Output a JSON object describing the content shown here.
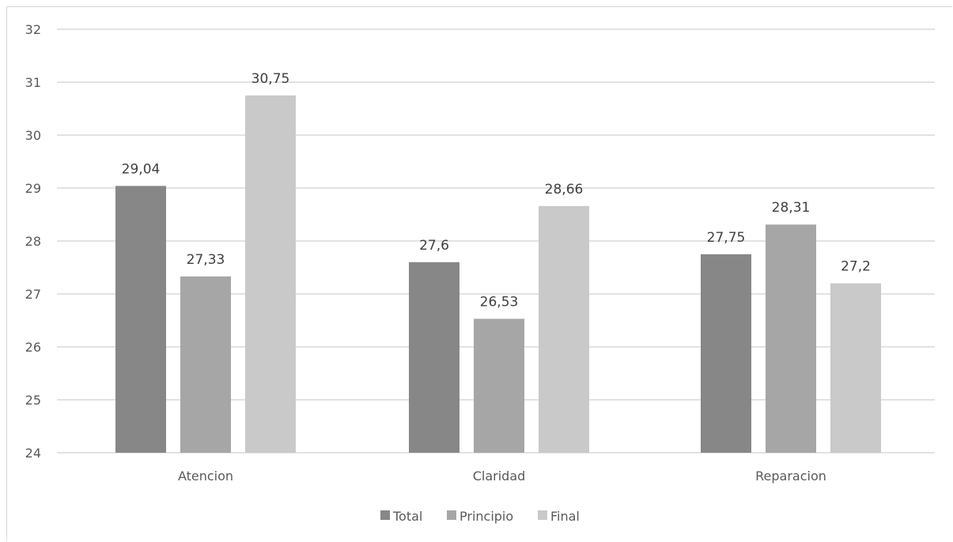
{
  "chart_data": {
    "type": "bar",
    "title": "",
    "xlabel": "",
    "ylabel": "",
    "categories": [
      "Atencion",
      "Claridad",
      "Reparacion"
    ],
    "series": [
      {
        "name": "Total",
        "values": [
          29.04,
          27.6,
          27.75
        ],
        "labels": [
          "29,04",
          "27,6",
          "27,75"
        ],
        "color": "#878787"
      },
      {
        "name": "Principio",
        "values": [
          27.33,
          26.53,
          28.31
        ],
        "labels": [
          "27,33",
          "26,53",
          "28,31"
        ],
        "color": "#a6a6a6"
      },
      {
        "name": "Final",
        "values": [
          30.75,
          28.66,
          27.2
        ],
        "labels": [
          "30,75",
          "28,66",
          "27,2"
        ],
        "color": "#c9c9c9"
      }
    ],
    "ylim": [
      24,
      32
    ],
    "yticks": [
      "24",
      "25",
      "26",
      "27",
      "28",
      "29",
      "30",
      "31",
      "32"
    ],
    "grid": true,
    "legend_position": "bottom",
    "gridline_color": "#d9d9d9"
  }
}
